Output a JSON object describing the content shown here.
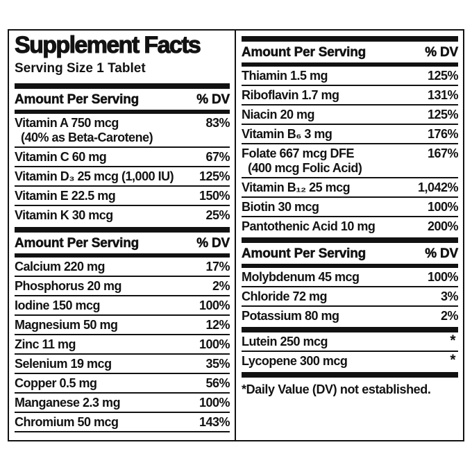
{
  "colors": {
    "text": "#121212",
    "background": "#ffffff"
  },
  "label": {
    "title": "Supplement Facts",
    "serving_size": "Serving Size 1 Tablet",
    "left": {
      "sections": [
        {
          "header": {
            "amount": "Amount Per Serving",
            "dv": "% DV"
          },
          "rows": [
            {
              "name": "Vitamin A 750 mcg",
              "name2": "(40% as Beta-Carotene)",
              "dv": "83%"
            },
            {
              "name": "Vitamin C 60 mg",
              "dv": "67%"
            },
            {
              "name": "Vitamin D₃ 25 mcg (1,000 IU)",
              "dv": "125%"
            },
            {
              "name": "Vitamin E 22.5 mg",
              "dv": "150%"
            },
            {
              "name": "Vitamin K 30 mcg",
              "dv": "25%"
            }
          ]
        },
        {
          "header": {
            "amount": "Amount Per Serving",
            "dv": "% DV"
          },
          "rows": [
            {
              "name": "Calcium 220 mg",
              "dv": "17%"
            },
            {
              "name": "Phosphorus 20 mg",
              "dv": "2%"
            },
            {
              "name": "Iodine 150 mcg",
              "dv": "100%"
            },
            {
              "name": "Magnesium 50 mg",
              "dv": "12%"
            },
            {
              "name": "Zinc 11 mg",
              "dv": "100%"
            },
            {
              "name": "Selenium 19 mcg",
              "dv": "35%"
            },
            {
              "name": "Copper 0.5 mg",
              "dv": "56%"
            },
            {
              "name": "Manganese 2.3 mg",
              "dv": "100%"
            },
            {
              "name": "Chromium 50 mcg",
              "dv": "143%"
            }
          ]
        }
      ]
    },
    "right": {
      "sections": [
        {
          "header": {
            "amount": "Amount Per Serving",
            "dv": "% DV"
          },
          "rows": [
            {
              "name": "Thiamin 1.5 mg",
              "dv": "125%"
            },
            {
              "name": "Riboflavin 1.7 mg",
              "dv": "131%"
            },
            {
              "name": "Niacin 20 mg",
              "dv": "125%"
            },
            {
              "name": "Vitamin B₆ 3 mg",
              "dv": "176%"
            },
            {
              "name": "Folate 667 mcg DFE",
              "name2": "(400 mcg Folic Acid)",
              "dv": "167%"
            },
            {
              "name": "Vitamin B₁₂ 25 mcg",
              "dv": "1,042%"
            },
            {
              "name": "Biotin 30 mcg",
              "dv": "100%"
            },
            {
              "name": "Pantothenic Acid 10 mg",
              "dv": "200%"
            }
          ]
        },
        {
          "header": {
            "amount": "Amount Per Serving",
            "dv": "% DV"
          },
          "rows": [
            {
              "name": "Molybdenum 45 mcg",
              "dv": "100%"
            },
            {
              "name": "Chloride 72 mg",
              "dv": "3%"
            },
            {
              "name": "Potassium 80 mg",
              "dv": "2%"
            }
          ]
        },
        {
          "rows": [
            {
              "name": "Lutein 250 mcg",
              "dv": "*"
            },
            {
              "name": "Lycopene 300 mcg",
              "dv": "*"
            }
          ]
        }
      ],
      "footnote": "*Daily Value (DV) not established."
    }
  }
}
